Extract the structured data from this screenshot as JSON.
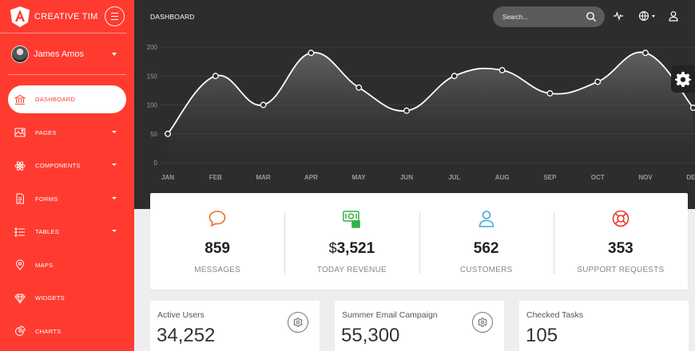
{
  "brand": {
    "name": "CREATIVE TIM"
  },
  "user": {
    "name": "James Amos"
  },
  "nav": {
    "items": [
      {
        "label": "DASHBOARD",
        "icon": "bank-icon"
      },
      {
        "label": "PAGES",
        "icon": "image-icon"
      },
      {
        "label": "COMPONENTS",
        "icon": "atom-icon"
      },
      {
        "label": "FORMS",
        "icon": "file-icon"
      },
      {
        "label": "TABLES",
        "icon": "list-icon"
      },
      {
        "label": "MAPS",
        "icon": "pin-icon"
      },
      {
        "label": "WIDGETS",
        "icon": "diamond-icon"
      },
      {
        "label": "CHARTS",
        "icon": "pie-chart-icon"
      }
    ],
    "active_index": 0
  },
  "header": {
    "title": "DASHBOARD",
    "search_placeholder": "Search..."
  },
  "chart_data": {
    "type": "area",
    "categories": [
      "JAN",
      "FEB",
      "MAR",
      "APR",
      "MAY",
      "JUN",
      "JUL",
      "AUG",
      "SEP",
      "OCT",
      "NOV",
      "DEC"
    ],
    "values": [
      50,
      150,
      100,
      190,
      130,
      90,
      150,
      160,
      120,
      140,
      190,
      95
    ],
    "yticks": [
      0,
      50,
      100,
      150,
      200
    ],
    "ylim": [
      0,
      200
    ],
    "grid": true,
    "line_color": "#ffffff"
  },
  "stats": [
    {
      "value": "859",
      "currency": "",
      "label": "MESSAGES",
      "icon": "chat-bubble-icon",
      "color": "#f06a2a"
    },
    {
      "value": "3,521",
      "currency": "$",
      "label": "TODAY REVENUE",
      "icon": "money-icon",
      "color": "#2fb344"
    },
    {
      "value": "562",
      "currency": "",
      "label": "CUSTOMERS",
      "icon": "user-icon",
      "color": "#3aa8e6"
    },
    {
      "value": "353",
      "currency": "",
      "label": "SUPPORT REQUESTS",
      "icon": "lifebuoy-icon",
      "color": "#e8372c"
    }
  ],
  "cards": [
    {
      "title": "Active Users",
      "value": "34,252"
    },
    {
      "title": "Summer Email Campaign",
      "value": "55,300"
    },
    {
      "title": "Checked Tasks",
      "value": "105"
    }
  ],
  "colors": {
    "sidebar": "#ff3b30",
    "topbar": "#2d2d2d"
  }
}
